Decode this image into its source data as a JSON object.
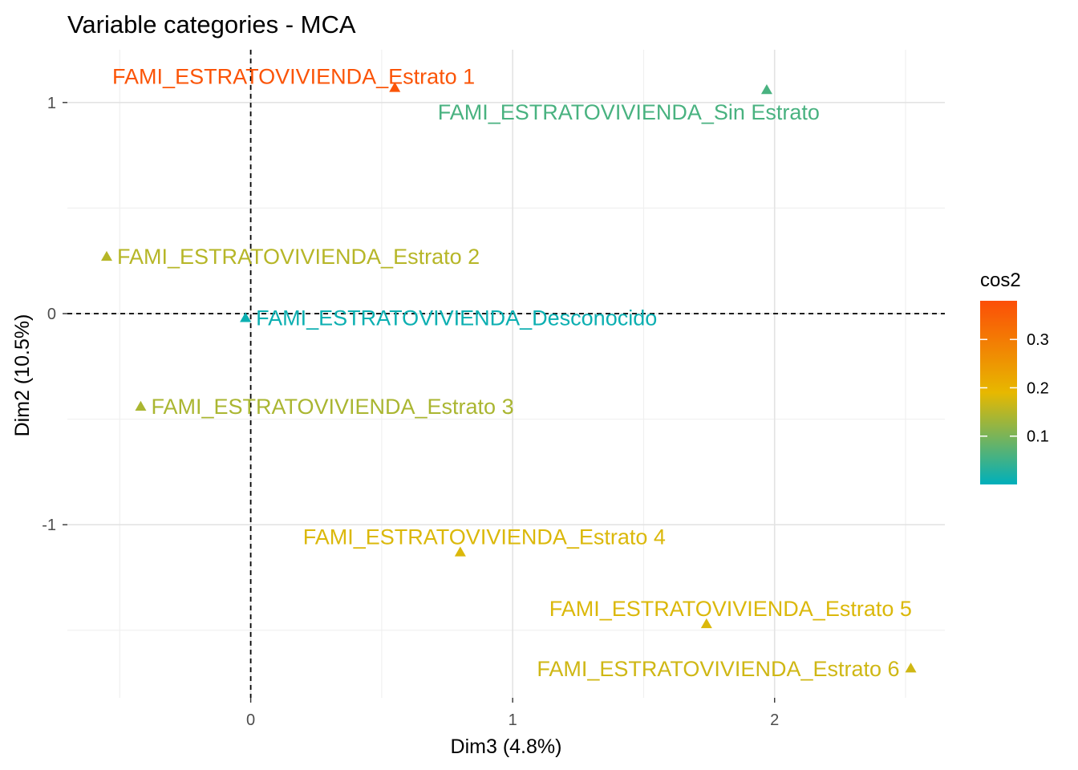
{
  "chart_data": {
    "type": "scatter",
    "title": "Variable categories - MCA",
    "xlabel": "Dim3 (4.8%)",
    "ylabel": "Dim2 (10.5%)",
    "xlim": [
      -0.7,
      2.65
    ],
    "ylim": [
      -1.82,
      1.25
    ],
    "x_ticks": [
      0,
      1,
      2
    ],
    "x_tick_labels": [
      "0",
      "1",
      "2"
    ],
    "y_ticks": [
      -1,
      0,
      1
    ],
    "y_tick_labels": [
      "-1",
      "0",
      "1"
    ],
    "grid": true,
    "reference_lines": {
      "x": 0,
      "y": 0,
      "style": "dashed"
    },
    "marker": "triangle",
    "color_scale": {
      "variable": "cos2",
      "min": 0.0,
      "max": 0.38,
      "stops": [
        {
          "value": 0.0,
          "color": "#00AFBB"
        },
        {
          "value": 0.19,
          "color": "#E7B800"
        },
        {
          "value": 0.38,
          "color": "#FC4E07"
        }
      ],
      "ticks": [
        0.1,
        0.2,
        0.3
      ],
      "tick_labels": [
        "0.1",
        "0.2",
        "0.3"
      ]
    },
    "legend": {
      "title": "cos2",
      "position": "right"
    },
    "points": [
      {
        "label": "FAMI_ESTRATOVIVIENDA_Estrato 1",
        "x": 0.55,
        "y": 1.07,
        "cos2": 0.37,
        "label_pos": "upper-left"
      },
      {
        "label": "FAMI_ESTRATOVIVIENDA_Sin Estrato",
        "x": 1.97,
        "y": 1.06,
        "cos2": 0.06,
        "label_pos": "below-left"
      },
      {
        "label": "FAMI_ESTRATOVIVIENDA_Estrato 2",
        "x": -0.55,
        "y": 0.27,
        "cos2": 0.15,
        "label_pos": "right"
      },
      {
        "label": "FAMI_ESTRATOVIVIENDA_Desconocido",
        "x": -0.02,
        "y": -0.02,
        "cos2": 0.01,
        "label_pos": "right"
      },
      {
        "label": "FAMI_ESTRATOVIVIENDA_Estrato 3",
        "x": -0.42,
        "y": -0.44,
        "cos2": 0.14,
        "label_pos": "right"
      },
      {
        "label": "FAMI_ESTRATOVIVIENDA_Estrato 4",
        "x": 0.8,
        "y": -1.13,
        "cos2": 0.18,
        "label_pos": "above"
      },
      {
        "label": "FAMI_ESTRATOVIVIENDA_Estrato 5",
        "x": 1.74,
        "y": -1.47,
        "cos2": 0.18,
        "label_pos": "above"
      },
      {
        "label": "FAMI_ESTRATOVIVIENDA_Estrato 6",
        "x": 2.52,
        "y": -1.68,
        "cos2": 0.17,
        "label_pos": "left"
      }
    ]
  }
}
